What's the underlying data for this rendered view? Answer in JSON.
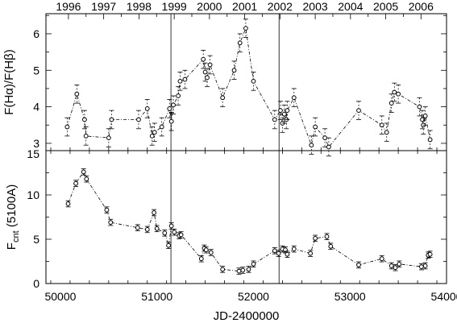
{
  "chart_data": [
    {
      "type": "scatter",
      "panel": "top",
      "ylabel": "F(Hα)/F(Hβ)",
      "ylim": [
        2.8,
        6.55
      ],
      "yticks": [
        3,
        4,
        5,
        6
      ],
      "top_axis_years": [
        "1996",
        "1997",
        "1998",
        "1999",
        "2000",
        "2001",
        "2002",
        "2003",
        "2004",
        "2005",
        "2006"
      ],
      "vertical_lines_jd": [
        51145,
        52265
      ],
      "series": [
        {
          "x": [
            50070,
            50170,
            50250,
            50265,
            50500,
            50530,
            50810,
            50900,
            50950,
            50975,
            51050,
            51130,
            51150,
            51170,
            51220,
            51240,
            51290,
            51480,
            51500,
            51520,
            51550,
            51680,
            51800,
            51860,
            51920,
            52000,
            52220,
            52280,
            52300,
            52320,
            52340,
            52350,
            52420,
            52600,
            52640,
            52740,
            52780,
            53090,
            53330,
            53380,
            53430,
            53460,
            53500,
            53720,
            53750,
            53760,
            53780,
            53830
          ],
          "y": [
            3.45,
            4.35,
            3.65,
            3.2,
            3.15,
            3.65,
            3.65,
            3.95,
            3.2,
            3.3,
            3.45,
            3.95,
            3.6,
            4.05,
            4.3,
            4.7,
            4.75,
            5.3,
            4.95,
            4.8,
            5.15,
            4.25,
            5.0,
            5.75,
            6.15,
            4.7,
            3.65,
            3.9,
            3.55,
            3.8,
            3.65,
            3.9,
            4.25,
            2.95,
            3.45,
            3.15,
            2.9,
            3.9,
            3.5,
            3.3,
            4.1,
            4.4,
            4.35,
            4.0,
            3.65,
            3.5,
            3.75,
            3.1
          ],
          "yerr": 0.25
        }
      ]
    },
    {
      "type": "scatter",
      "panel": "bottom",
      "xlabel": "JD-2400000",
      "ylabel_main": "F",
      "ylabel_sub": "cnt",
      "ylabel_tail": " (5100A)",
      "xlim": [
        49850,
        54000
      ],
      "xticks": [
        50000,
        51000,
        52000,
        53000,
        54000
      ],
      "ylim": [
        0,
        15
      ],
      "yticks": [
        0,
        5,
        10,
        15
      ],
      "vertical_lines_jd": [
        51145,
        52265
      ],
      "series": [
        {
          "x": [
            50080,
            50160,
            50240,
            50270,
            50480,
            50520,
            50800,
            50900,
            50970,
            51000,
            51080,
            51120,
            51150,
            51180,
            51230,
            51250,
            51460,
            51490,
            51510,
            51560,
            51680,
            51850,
            51890,
            51950,
            52000,
            52220,
            52260,
            52300,
            52330,
            52350,
            52420,
            52590,
            52640,
            52760,
            52800,
            53090,
            53330,
            53430,
            53470,
            53510,
            53740,
            53780,
            53810,
            53830
          ],
          "y": [
            9.0,
            11.3,
            12.6,
            11.8,
            8.3,
            6.9,
            6.3,
            6.1,
            8.0,
            6.2,
            5.7,
            4.3,
            6.5,
            5.8,
            5.4,
            5.5,
            2.8,
            4.0,
            3.8,
            3.5,
            1.6,
            1.4,
            1.5,
            1.6,
            2.2,
            3.7,
            3.4,
            3.9,
            3.8,
            3.3,
            3.9,
            3.4,
            5.1,
            5.3,
            4.2,
            2.1,
            2.8,
            2.0,
            1.8,
            2.2,
            1.9,
            2.0,
            3.2,
            3.3
          ],
          "yerr": 0.35
        }
      ]
    }
  ]
}
